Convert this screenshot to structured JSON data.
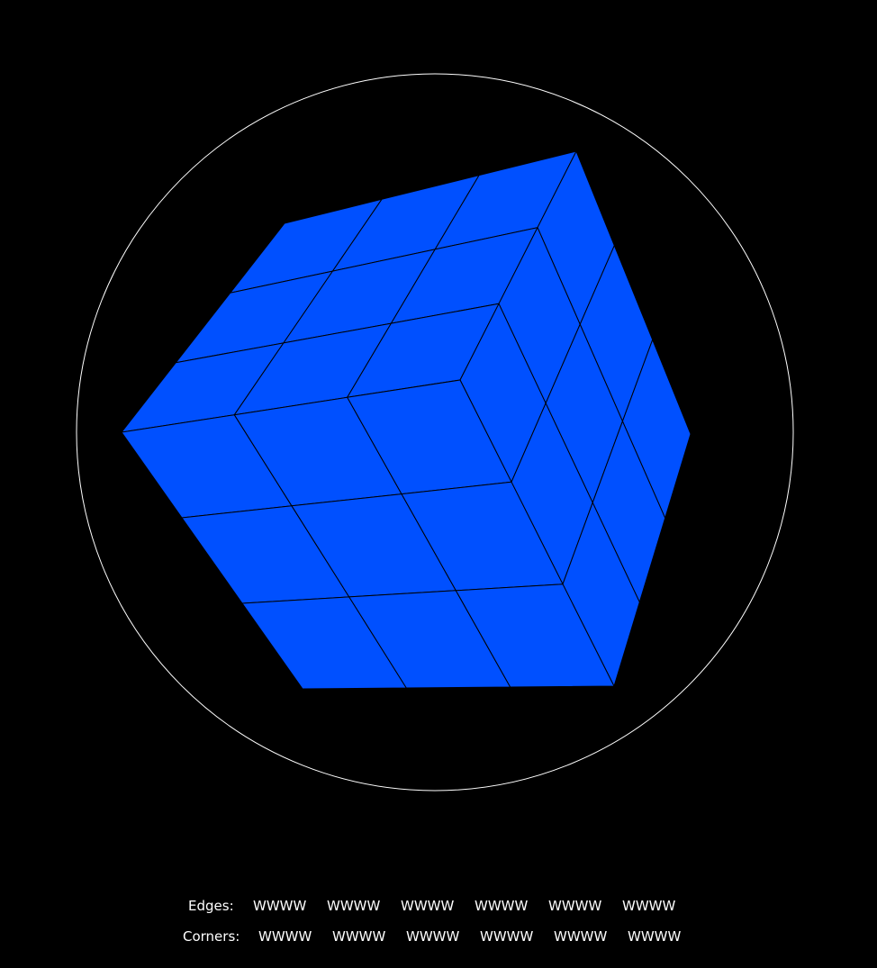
{
  "puzzle": {
    "face_color": "#0050ff",
    "line_color": "#000000",
    "ring_color": "#ffffff",
    "background": "#000000"
  },
  "status": {
    "edges_label": "Edges:",
    "edges": [
      "WWWW",
      "WWWW",
      "WWWW",
      "WWWW",
      "WWWW",
      "WWWW"
    ],
    "corners_label": "Corners:",
    "corners": [
      "WWWW",
      "WWWW",
      "WWWW",
      "WWWW",
      "WWWW",
      "WWWW"
    ]
  }
}
